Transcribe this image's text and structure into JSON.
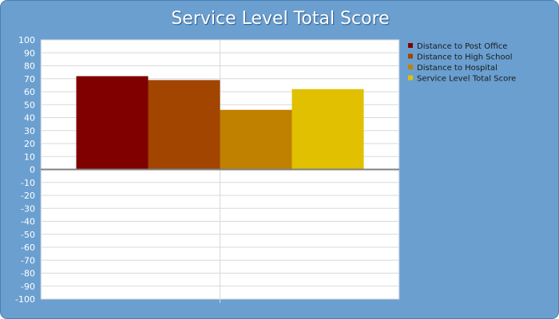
{
  "chart_data": {
    "type": "bar",
    "title": "Service Level Total Score",
    "xlabel": "",
    "ylabel": "",
    "ylim": [
      -100,
      100
    ],
    "ytick_step": 10,
    "grid": true,
    "legend_position": "right",
    "series": [
      {
        "name": "Distance to Post Office",
        "value": 72,
        "color": "#800000"
      },
      {
        "name": "Distance to High School",
        "value": 69,
        "color": "#a14500"
      },
      {
        "name": "Distance to Hospital",
        "value": 46,
        "color": "#c08000"
      },
      {
        "name": "Service Level Total Score",
        "value": 62,
        "color": "#e0c000"
      }
    ]
  },
  "colors": {
    "background": "#6a9fd0",
    "plot_area": "#ffffff",
    "grid": "#d8d8d8",
    "zero_line": "#808080"
  }
}
